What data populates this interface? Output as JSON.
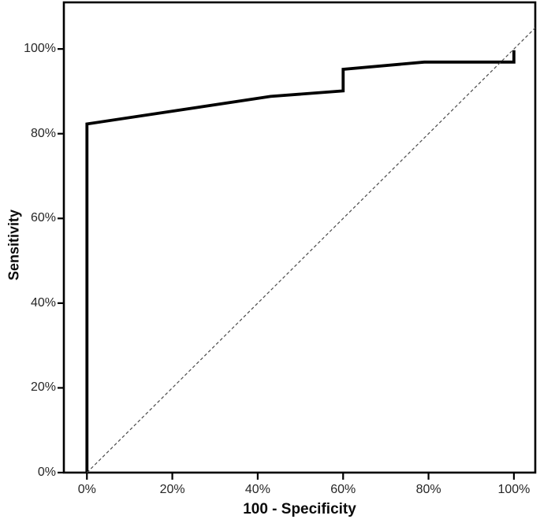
{
  "chart_data": {
    "type": "line",
    "title": "",
    "xlabel": "100 - Specificity",
    "ylabel": "Sensitivity",
    "xlim": [
      -5.4,
      105
    ],
    "ylim": [
      0,
      111
    ],
    "grid": false,
    "legend": "none",
    "x_ticks": {
      "values": [
        0,
        20,
        40,
        60,
        80,
        100
      ],
      "labels": [
        "0%",
        "20%",
        "40%",
        "60%",
        "80%",
        "100%"
      ]
    },
    "y_ticks": {
      "values": [
        0,
        20,
        40,
        60,
        80,
        100
      ],
      "labels": [
        "0%",
        "20%",
        "40%",
        "60%",
        "80%",
        "100%"
      ]
    },
    "series": [
      {
        "name": "roc-curve",
        "style": "solid",
        "color": "#000000",
        "width": 3.8,
        "points": [
          [
            0,
            0
          ],
          [
            0,
            82.3
          ],
          [
            43,
            88.8
          ],
          [
            60,
            90.1
          ],
          [
            60,
            95.2
          ],
          [
            79,
            96.9
          ],
          [
            100,
            96.9
          ],
          [
            100,
            99.7
          ]
        ]
      },
      {
        "name": "reference-diagonal",
        "style": "dashed",
        "color": "#4a4a4a",
        "width": 1.2,
        "dash": "4 3",
        "points": [
          [
            0,
            0
          ],
          [
            105,
            105
          ]
        ]
      }
    ],
    "frame_color": "#000000",
    "tick_color": "#000000",
    "label_color": "#262626"
  }
}
